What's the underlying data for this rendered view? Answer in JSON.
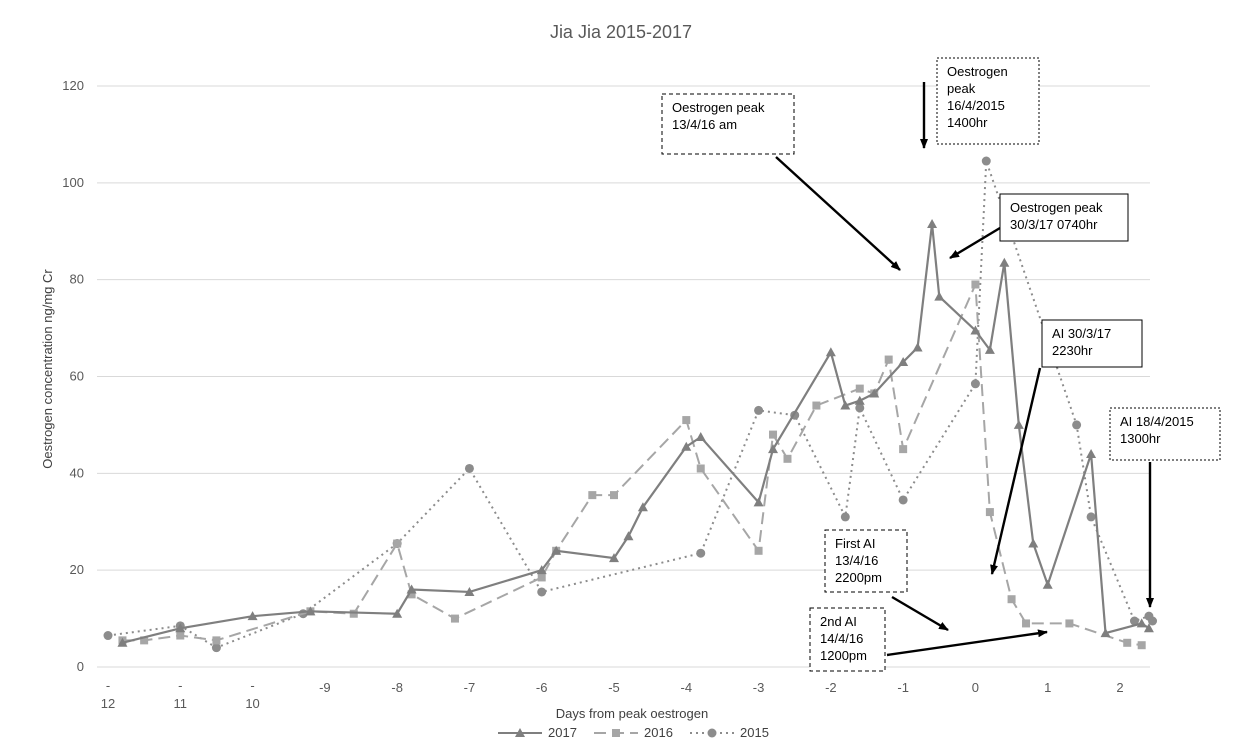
{
  "chart_data": {
    "type": "line",
    "title": "Jia Jia 2015-2017",
    "xlabel": "Days from peak oestrogen",
    "ylabel": "Oestrogen concentration ng/mg Cr",
    "ylim": [
      0,
      120
    ],
    "yticks": [
      0,
      20,
      40,
      60,
      80,
      100,
      120
    ],
    "xlim": [
      -12,
      2.45
    ],
    "xticks": [
      {
        "x": -12,
        "label": "12",
        "prefix": "-"
      },
      {
        "x": -11,
        "label": "11",
        "prefix": "-"
      },
      {
        "x": -10,
        "label": "10",
        "prefix": "-"
      },
      {
        "x": -9,
        "label": "-9"
      },
      {
        "x": -8,
        "label": "-8"
      },
      {
        "x": -7,
        "label": "-7"
      },
      {
        "x": -6,
        "label": "-6"
      },
      {
        "x": -5,
        "label": "-5"
      },
      {
        "x": -4,
        "label": "-4"
      },
      {
        "x": -3,
        "label": "-3"
      },
      {
        "x": -2,
        "label": "-2"
      },
      {
        "x": -1,
        "label": "-1"
      },
      {
        "x": 0,
        "label": "0"
      },
      {
        "x": 1,
        "label": "1"
      },
      {
        "x": 2,
        "label": "2"
      }
    ],
    "grid": "horizontal",
    "legend_position": "bottom",
    "series": [
      {
        "name": "2017",
        "color": "#7f7f7f",
        "dash": "solid",
        "marker": "triangle",
        "points": [
          [
            -11.8,
            5
          ],
          [
            -11,
            8
          ],
          [
            -10,
            10.5
          ],
          [
            -9.2,
            11.5
          ],
          [
            -8,
            11
          ],
          [
            -7.8,
            16
          ],
          [
            -7,
            15.5
          ],
          [
            -6,
            20
          ],
          [
            -5.8,
            24
          ],
          [
            -5,
            22.5
          ],
          [
            -4.8,
            27
          ],
          [
            -4.6,
            33
          ],
          [
            -4,
            45.5
          ],
          [
            -3.8,
            47.5
          ],
          [
            -3,
            34
          ],
          [
            -2.8,
            45
          ],
          [
            -2,
            65
          ],
          [
            -1.8,
            54
          ],
          [
            -1.6,
            55
          ],
          [
            -1.4,
            56.5
          ],
          [
            -1,
            63
          ],
          [
            -0.8,
            66
          ],
          [
            -0.6,
            91.5
          ],
          [
            -0.5,
            76.5
          ],
          [
            0,
            69.5
          ],
          [
            0.2,
            65.5
          ],
          [
            0.4,
            83.5
          ],
          [
            0.6,
            50
          ],
          [
            0.8,
            25.5
          ],
          [
            1.0,
            17
          ],
          [
            1.6,
            44
          ],
          [
            1.8,
            7
          ],
          [
            2.3,
            9
          ],
          [
            2.4,
            8
          ]
        ]
      },
      {
        "name": "2016",
        "color": "#a6a6a6",
        "dash": "dashed",
        "marker": "square",
        "points": [
          [
            -11.8,
            5.5
          ],
          [
            -11.5,
            5.5
          ],
          [
            -11,
            6.5
          ],
          [
            -10.5,
            5.5
          ],
          [
            -9.2,
            11.5
          ],
          [
            -8.6,
            11
          ],
          [
            -8,
            25.5
          ],
          [
            -7.8,
            15
          ],
          [
            -7.2,
            10
          ],
          [
            -6,
            18.5
          ],
          [
            -5.8,
            24
          ],
          [
            -5.3,
            35.5
          ],
          [
            -5,
            35.5
          ],
          [
            -4,
            51
          ],
          [
            -3.8,
            41
          ],
          [
            -3,
            24
          ],
          [
            -2.8,
            48
          ],
          [
            -2.6,
            43
          ],
          [
            -2.2,
            54
          ],
          [
            -1.6,
            57.5
          ],
          [
            -1.4,
            56.5
          ],
          [
            -1.2,
            63.5
          ],
          [
            -1,
            45
          ],
          [
            0,
            79
          ],
          [
            0.2,
            32
          ],
          [
            0.5,
            14
          ],
          [
            0.7,
            9
          ],
          [
            1.3,
            9
          ],
          [
            2.1,
            5
          ],
          [
            2.3,
            4.5
          ]
        ]
      },
      {
        "name": "2015",
        "color": "#8c8c8c",
        "dash": "dotted",
        "marker": "circle",
        "points": [
          [
            -12,
            6.5
          ],
          [
            -11,
            8.5
          ],
          [
            -10.5,
            4
          ],
          [
            -9.3,
            11
          ],
          [
            -8,
            25.5
          ],
          [
            -7,
            41
          ],
          [
            -6,
            15.5
          ],
          [
            -3.8,
            23.5
          ],
          [
            -3,
            53
          ],
          [
            -2.5,
            52
          ],
          [
            -1.8,
            31
          ],
          [
            -1.6,
            53.5
          ],
          [
            -1,
            34.5
          ],
          [
            0,
            58.5
          ],
          [
            0.15,
            104.5
          ],
          [
            1.4,
            50
          ],
          [
            1.6,
            31
          ],
          [
            2.2,
            9.5
          ],
          [
            2.4,
            10.5
          ],
          [
            2.45,
            9.5
          ]
        ]
      }
    ],
    "annotations": [
      {
        "id": "peak-2016",
        "lines": [
          "Oestrogen peak",
          "13/4/16 am"
        ],
        "border": "dashed"
      },
      {
        "id": "peak-2015",
        "lines": [
          "Oestrogen",
          "peak",
          "16/4/2015",
          "1400hr"
        ],
        "border": "dotted"
      },
      {
        "id": "peak-2017",
        "lines": [
          "Oestrogen peak",
          "30/3/17 0740hr"
        ],
        "border": "solid"
      },
      {
        "id": "ai-2017",
        "lines": [
          "AI  30/3/17",
          "2230hr"
        ],
        "border": "solid"
      },
      {
        "id": "ai-2015",
        "lines": [
          "AI 18/4/2015",
          "1300hr"
        ],
        "border": "dotted"
      },
      {
        "id": "first-ai-2016",
        "lines": [
          "First AI",
          "13/4/16",
          "2200pm"
        ],
        "border": "dashed"
      },
      {
        "id": "second-ai-2016",
        "lines": [
          "2nd AI",
          "14/4/16",
          "1200pm"
        ],
        "border": "dashed"
      }
    ]
  }
}
